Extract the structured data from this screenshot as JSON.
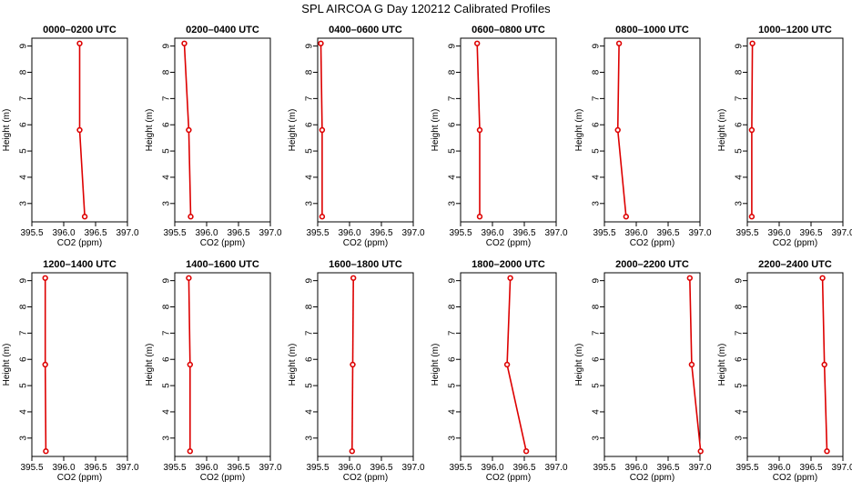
{
  "title": "SPL AIRCOA G  Day 120212  Calibrated Profiles",
  "colors": {
    "line": "#dd0000",
    "axis": "#000000"
  },
  "chart_data": {
    "type": "line",
    "xlabel": "CO2 (ppm)",
    "ylabel": "Height (m)",
    "xlim": [
      395.5,
      397.0
    ],
    "ylim": [
      2.3,
      9.3
    ],
    "xticks": [
      "395.5",
      "396.0",
      "396.5",
      "397.0"
    ],
    "yticks": [
      "3",
      "4",
      "5",
      "6",
      "7",
      "8",
      "9"
    ],
    "heights": [
      9.1,
      5.8,
      2.5
    ],
    "panels": [
      {
        "title": "0000–0200 UTC",
        "co2": [
          396.25,
          396.25,
          396.33
        ]
      },
      {
        "title": "0200–0400 UTC",
        "co2": [
          395.65,
          395.72,
          395.75
        ]
      },
      {
        "title": "0400–0600 UTC",
        "co2": [
          395.55,
          395.57,
          395.57
        ]
      },
      {
        "title": "0600–0800 UTC",
        "co2": [
          395.76,
          395.8,
          395.8
        ]
      },
      {
        "title": "0800–1000 UTC",
        "co2": [
          395.73,
          395.71,
          395.84
        ]
      },
      {
        "title": "1000–1200 UTC",
        "co2": [
          395.58,
          395.57,
          395.57
        ]
      },
      {
        "title": "1200–1400 UTC",
        "co2": [
          395.71,
          395.71,
          395.72
        ]
      },
      {
        "title": "1400–1600 UTC",
        "co2": [
          395.72,
          395.74,
          395.74
        ]
      },
      {
        "title": "1600–1800 UTC",
        "co2": [
          396.06,
          396.05,
          396.04
        ]
      },
      {
        "title": "1800–2000 UTC",
        "co2": [
          396.28,
          396.23,
          396.53
        ]
      },
      {
        "title": "2000–2200 UTC",
        "co2": [
          396.84,
          396.87,
          397.01
        ]
      },
      {
        "title": "2200–2400 UTC",
        "co2": [
          396.68,
          396.71,
          396.75
        ]
      }
    ]
  }
}
